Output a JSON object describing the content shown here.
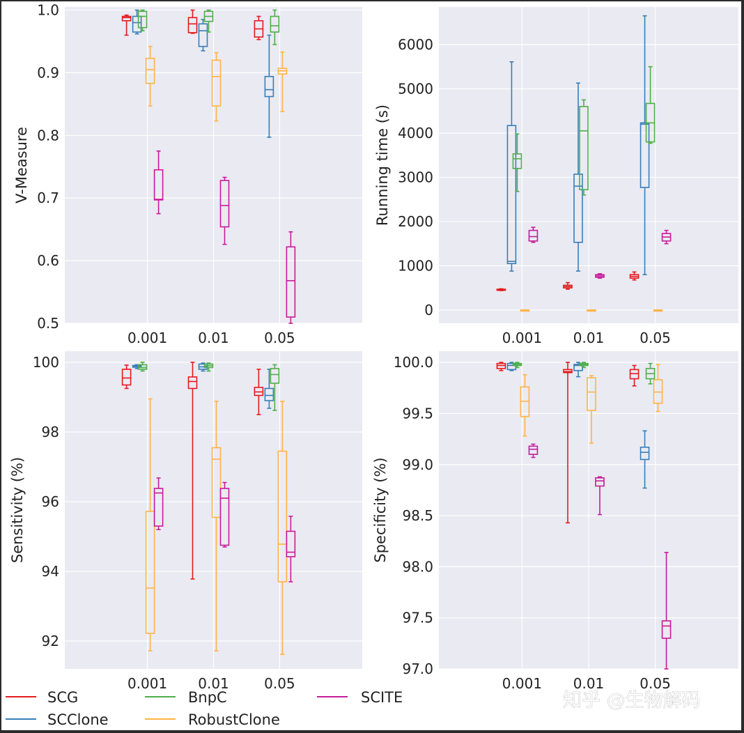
{
  "colors": {
    "panel_bg": "#eaeaf2",
    "grid": "#ffffff",
    "SCG": "#e41a1c",
    "SCClone": "#377eb8",
    "BnpC": "#4daf4a",
    "RobustClone": "#ffb347",
    "SCITE": "#c51b9a"
  },
  "legend": [
    "SCG",
    "BnpC",
    "SCITE",
    "SCClone",
    "RobustClone"
  ],
  "watermark": "知乎 @生物解码",
  "chart_data": [
    {
      "id": "vmeasure",
      "type": "box",
      "ylabel": "V-Measure",
      "categories": [
        "0.001",
        "0.01",
        "0.05"
      ],
      "ylim": [
        0.5,
        1.005
      ],
      "yticks": [
        0.5,
        0.6,
        0.7,
        0.8,
        0.9,
        1.0
      ],
      "ytick_labels": [
        "0.5",
        "0.6",
        "0.7",
        "0.8",
        "0.9",
        "1.0"
      ],
      "series": [
        {
          "name": "SCG",
          "boxes": [
            [
              0.96,
              0.983,
              0.988,
              0.99,
              0.992
            ],
            [
              0.963,
              0.964,
              0.978,
              0.988,
              1.0
            ],
            [
              0.953,
              0.957,
              0.97,
              0.983,
              0.99
            ]
          ]
        },
        {
          "name": "SCClone",
          "boxes": [
            [
              0.962,
              0.965,
              0.98,
              0.99,
              1.0
            ],
            [
              0.935,
              0.942,
              0.967,
              0.978,
              0.985
            ],
            [
              0.797,
              0.862,
              0.873,
              0.894,
              0.96
            ]
          ]
        },
        {
          "name": "BnpC",
          "boxes": [
            [
              0.967,
              0.972,
              0.99,
              0.998,
              1.0
            ],
            [
              0.965,
              0.982,
              0.99,
              0.998,
              1.0
            ],
            [
              0.945,
              0.965,
              0.975,
              0.99,
              1.0
            ]
          ]
        },
        {
          "name": "RobustClone",
          "boxes": [
            [
              0.847,
              0.883,
              0.905,
              0.923,
              0.942
            ],
            [
              0.823,
              0.847,
              0.894,
              0.92,
              0.932
            ],
            [
              0.838,
              0.898,
              0.903,
              0.907,
              0.933
            ]
          ]
        },
        {
          "name": "SCITE",
          "boxes": [
            [
              0.675,
              0.697,
              0.698,
              0.745,
              0.775
            ],
            [
              0.626,
              0.654,
              0.688,
              0.728,
              0.733
            ],
            [
              0.5,
              0.51,
              0.568,
              0.622,
              0.646
            ]
          ]
        }
      ]
    },
    {
      "id": "runtime",
      "type": "box",
      "ylabel": "Running time (s)",
      "categories": [
        "0.001",
        "0.01",
        "0.05"
      ],
      "ylim": [
        -300,
        6850
      ],
      "yticks": [
        0,
        1000,
        2000,
        3000,
        4000,
        5000,
        6000
      ],
      "ytick_labels": [
        "0",
        "1000",
        "2000",
        "3000",
        "4000",
        "5000",
        "6000"
      ],
      "series": [
        {
          "name": "SCG",
          "boxes": [
            [
              440,
              450,
              460,
              470,
              480
            ],
            [
              470,
              500,
              530,
              560,
              620
            ],
            [
              680,
              720,
              760,
              800,
              860
            ]
          ]
        },
        {
          "name": "SCClone",
          "boxes": [
            [
              880,
              1050,
              1100,
              4170,
              5610
            ],
            [
              880,
              1530,
              2800,
              3070,
              5130
            ],
            [
              800,
              2770,
              4200,
              4230,
              6650
            ]
          ]
        },
        {
          "name": "BnpC",
          "boxes": [
            [
              2680,
              3200,
              3420,
              3530,
              3980
            ],
            [
              2600,
              2720,
              4050,
              4600,
              4750
            ],
            [
              3770,
              3800,
              4230,
              4670,
              5500
            ]
          ]
        },
        {
          "name": "RobustClone",
          "boxes": [
            [
              0,
              0,
              0,
              0,
              0
            ],
            [
              0,
              0,
              0,
              0,
              0
            ],
            [
              0,
              0,
              0,
              0,
              0
            ]
          ]
        },
        {
          "name": "SCITE",
          "boxes": [
            [
              1530,
              1560,
              1660,
              1800,
              1870
            ],
            [
              720,
              740,
              770,
              800,
              820
            ],
            [
              1500,
              1560,
              1650,
              1730,
              1800
            ]
          ]
        }
      ]
    },
    {
      "id": "sensitivity",
      "type": "box",
      "ylabel": "Sensitivity (%)",
      "categories": [
        "0.001",
        "0.01",
        "0.05"
      ],
      "ylim": [
        91.2,
        100.32
      ],
      "yticks": [
        92,
        94,
        96,
        98,
        100
      ],
      "ytick_labels": [
        "92",
        "94",
        "96",
        "98",
        "100"
      ],
      "series": [
        {
          "name": "SCG",
          "boxes": [
            [
              99.25,
              99.35,
              99.55,
              99.8,
              99.92
            ],
            [
              93.78,
              99.25,
              99.45,
              99.58,
              100.0
            ],
            [
              98.5,
              99.05,
              99.15,
              99.28,
              99.8
            ]
          ]
        },
        {
          "name": "SCClone",
          "boxes": [
            [
              99.82,
              99.86,
              99.89,
              99.91,
              99.93
            ],
            [
              99.75,
              99.8,
              99.87,
              99.95,
              99.98
            ],
            [
              98.68,
              98.9,
              99.05,
              99.25,
              99.8
            ]
          ]
        },
        {
          "name": "BnpC",
          "boxes": [
            [
              99.75,
              99.8,
              99.85,
              99.93,
              100.0
            ],
            [
              99.75,
              99.85,
              99.9,
              99.95,
              99.98
            ],
            [
              98.62,
              99.4,
              99.65,
              99.82,
              99.93
            ]
          ]
        },
        {
          "name": "RobustClone",
          "boxes": [
            [
              91.72,
              92.22,
              93.52,
              95.72,
              98.95
            ],
            [
              91.72,
              95.55,
              97.22,
              97.55,
              98.88
            ],
            [
              91.62,
              93.7,
              94.78,
              97.45,
              98.88
            ]
          ]
        },
        {
          "name": "SCITE",
          "boxes": [
            [
              95.2,
              95.3,
              96.25,
              96.38,
              96.68
            ],
            [
              94.7,
              94.75,
              96.1,
              96.38,
              96.55
            ],
            [
              93.7,
              94.42,
              94.55,
              95.15,
              95.58
            ]
          ]
        }
      ]
    },
    {
      "id": "specificity",
      "type": "box",
      "ylabel": "Specificity (%)",
      "categories": [
        "0.001",
        "0.01",
        "0.05"
      ],
      "ylim": [
        97.0,
        100.11
      ],
      "yticks": [
        97.0,
        97.5,
        98.0,
        98.5,
        99.0,
        99.5,
        100.0
      ],
      "ytick_labels": [
        "97.0",
        "97.5",
        "98.0",
        "98.5",
        "99.0",
        "99.5",
        "100.0"
      ],
      "series": [
        {
          "name": "SCG",
          "boxes": [
            [
              99.92,
              99.94,
              99.97,
              99.99,
              100.0
            ],
            [
              98.43,
              99.9,
              99.91,
              99.93,
              100.0
            ],
            [
              99.77,
              99.84,
              99.89,
              99.93,
              99.97
            ]
          ]
        },
        {
          "name": "SCClone",
          "boxes": [
            [
              99.92,
              99.93,
              99.97,
              99.99,
              100.0
            ],
            [
              99.86,
              99.92,
              99.97,
              99.98,
              100.0
            ],
            [
              98.77,
              99.05,
              99.12,
              99.17,
              99.33
            ]
          ]
        },
        {
          "name": "BnpC",
          "boxes": [
            [
              99.95,
              99.97,
              99.98,
              99.99,
              100.0
            ],
            [
              99.95,
              99.97,
              99.98,
              99.99,
              100.0
            ],
            [
              99.79,
              99.84,
              99.89,
              99.94,
              99.99
            ]
          ]
        },
        {
          "name": "RobustClone",
          "boxes": [
            [
              99.28,
              99.47,
              99.62,
              99.76,
              99.88
            ],
            [
              99.21,
              99.53,
              99.71,
              99.85,
              99.87
            ],
            [
              99.52,
              99.6,
              99.71,
              99.83,
              99.98
            ]
          ]
        },
        {
          "name": "SCITE",
          "boxes": [
            [
              99.07,
              99.1,
              99.15,
              99.18,
              99.2
            ],
            [
              98.51,
              98.79,
              98.84,
              98.87,
              98.88
            ],
            [
              97.0,
              97.3,
              97.42,
              97.47,
              98.14
            ]
          ]
        }
      ]
    }
  ]
}
